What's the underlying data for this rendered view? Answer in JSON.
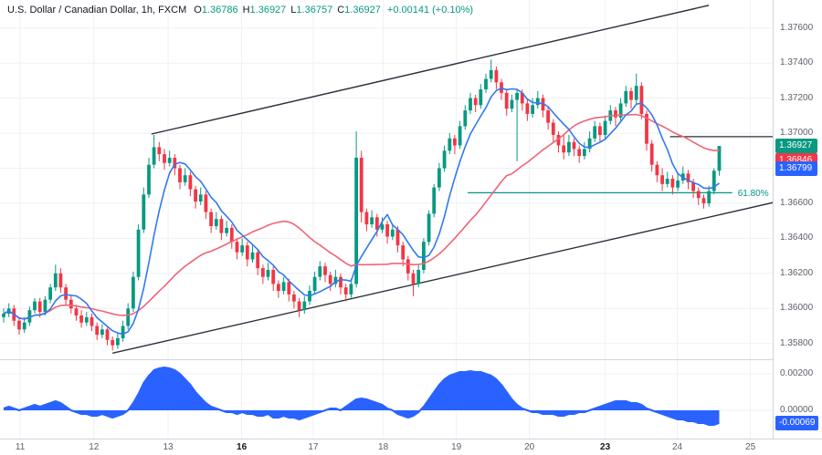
{
  "legend": {
    "title": "U.S. Dollar / Canadian Dollar, 1h, FXCM",
    "ohlc": [
      {
        "k": "O",
        "v": "1.36786"
      },
      {
        "k": "H",
        "v": "1.36927"
      },
      {
        "k": "L",
        "v": "1.36757"
      },
      {
        "k": "C",
        "v": "1.36927"
      }
    ],
    "change": "+0.00141 (+0.10%)"
  },
  "price_scale": {
    "ticks": [
      "1.37600",
      "1.37400",
      "1.37200",
      "1.37000",
      "1.36800",
      "1.36600",
      "1.36400",
      "1.36200",
      "1.36000",
      "1.35800"
    ],
    "badges": [
      {
        "text": "1.36927",
        "value": 1.36927,
        "color": "#089981"
      },
      {
        "text": "1.36846",
        "value": 1.36846,
        "color": "#f23645"
      },
      {
        "text": "1.36799",
        "value": 1.36799,
        "color": "#2962ff"
      }
    ]
  },
  "indicator_scale": {
    "ticks": [
      {
        "text": "0.00200",
        "value": 0.002
      },
      {
        "text": "0.00000",
        "value": 0.0
      }
    ],
    "badge": {
      "text": "-0.00069",
      "value": -0.00069,
      "color": "#2962ff"
    }
  },
  "time_axis": {
    "labels": [
      {
        "text": "11",
        "index": 3.2,
        "bold": false
      },
      {
        "text": "12",
        "index": 17.4,
        "bold": false
      },
      {
        "text": "13",
        "index": 31.7,
        "bold": false
      },
      {
        "text": "16",
        "index": 45.9,
        "bold": true
      },
      {
        "text": "17",
        "index": 59.7,
        "bold": false
      },
      {
        "text": "18",
        "index": 73.2,
        "bold": false
      },
      {
        "text": "19",
        "index": 87.3,
        "bold": false
      },
      {
        "text": "20",
        "index": 101.4,
        "bold": false
      },
      {
        "text": "23",
        "index": 116.0,
        "bold": true
      },
      {
        "text": "24",
        "index": 129.9,
        "bold": false
      },
      {
        "text": "25",
        "index": 144.0,
        "bold": false
      }
    ]
  },
  "chart_data": {
    "type": "candlestick",
    "symbol": "U.S. Dollar / Canadian Dollar",
    "interval": "1h",
    "exchange": "FXCM",
    "price_axis_range": [
      1.3571,
      1.3776
    ],
    "indicator_axis_range": [
      -0.00155,
      0.0028
    ],
    "colors": {
      "up": "#089981",
      "down": "#f23645",
      "grid": "#eef0f5",
      "axis_text": "#5d606b",
      "border": "#d1d4dc"
    },
    "ma_fast": {
      "period": 7,
      "color": "#3179f0"
    },
    "ma_slow": {
      "period": 30,
      "color": "#ef6577"
    },
    "channel": {
      "color": "#2b2f3a",
      "upper": {
        "from": [
          28.5,
          1.36995
        ],
        "to": [
          136.0,
          1.3773
        ]
      },
      "lower": {
        "from": [
          21.0,
          1.35745
        ],
        "to": [
          148.5,
          1.36605
        ]
      }
    },
    "fib_level": {
      "label": "61.80%",
      "price": 1.3666,
      "from_index": 89.5,
      "to_index": 140.5,
      "color": "#009688"
    },
    "level_line": {
      "price": 1.3698,
      "from_index": 128.5,
      "color": "#2b2f3a"
    },
    "candles_ohlc": [
      [
        1.3595,
        1.36,
        1.3592,
        1.3597
      ],
      [
        1.3597,
        1.3603,
        1.3595,
        1.36
      ],
      [
        1.36,
        1.3602,
        1.359,
        1.3593
      ],
      [
        1.3593,
        1.3595,
        1.3585,
        1.3588
      ],
      [
        1.3588,
        1.3595,
        1.3586,
        1.3592
      ],
      [
        1.3592,
        1.3601,
        1.359,
        1.3599
      ],
      [
        1.3599,
        1.3606,
        1.3597,
        1.3604
      ],
      [
        1.3604,
        1.3606,
        1.3595,
        1.3598
      ],
      [
        1.3598,
        1.3607,
        1.3596,
        1.3605
      ],
      [
        1.3605,
        1.3614,
        1.3603,
        1.3612
      ],
      [
        1.3612,
        1.3625,
        1.361,
        1.362
      ],
      [
        1.362,
        1.3623,
        1.3609,
        1.3612
      ],
      [
        1.3612,
        1.3614,
        1.3602,
        1.3605
      ],
      [
        1.3605,
        1.3608,
        1.3597,
        1.36
      ],
      [
        1.36,
        1.3602,
        1.3593,
        1.3596
      ],
      [
        1.3596,
        1.3599,
        1.3589,
        1.3592
      ],
      [
        1.3592,
        1.3598,
        1.359,
        1.3595
      ],
      [
        1.3595,
        1.3597,
        1.3587,
        1.359
      ],
      [
        1.359,
        1.3592,
        1.3582,
        1.3585
      ],
      [
        1.3585,
        1.3591,
        1.3583,
        1.3588
      ],
      [
        1.3588,
        1.3589,
        1.3579,
        1.3582
      ],
      [
        1.3582,
        1.3584,
        1.3576,
        1.3579
      ],
      [
        1.3579,
        1.3586,
        1.3577,
        1.3583
      ],
      [
        1.3583,
        1.3593,
        1.3581,
        1.359
      ],
      [
        1.359,
        1.3603,
        1.3588,
        1.36
      ],
      [
        1.36,
        1.3621,
        1.3598,
        1.3618
      ],
      [
        1.3618,
        1.3648,
        1.3616,
        1.3645
      ],
      [
        1.3645,
        1.3669,
        1.3643,
        1.3665
      ],
      [
        1.3665,
        1.3686,
        1.3663,
        1.3682
      ],
      [
        1.3682,
        1.3699,
        1.368,
        1.3692
      ],
      [
        1.3692,
        1.3695,
        1.3684,
        1.3688
      ],
      [
        1.3688,
        1.3691,
        1.3679,
        1.3683
      ],
      [
        1.3683,
        1.369,
        1.3681,
        1.3686
      ],
      [
        1.3686,
        1.3688,
        1.3676,
        1.368
      ],
      [
        1.368,
        1.3682,
        1.3668,
        1.3672
      ],
      [
        1.3672,
        1.368,
        1.367,
        1.3676
      ],
      [
        1.3676,
        1.3678,
        1.3664,
        1.3668
      ],
      [
        1.3668,
        1.367,
        1.3657,
        1.3661
      ],
      [
        1.3661,
        1.3669,
        1.3659,
        1.3665
      ],
      [
        1.3665,
        1.3667,
        1.3651,
        1.3655
      ],
      [
        1.3655,
        1.3657,
        1.3643,
        1.3647
      ],
      [
        1.3647,
        1.3655,
        1.3645,
        1.3651
      ],
      [
        1.3651,
        1.3653,
        1.3639,
        1.3643
      ],
      [
        1.3643,
        1.365,
        1.3641,
        1.3646
      ],
      [
        1.3646,
        1.3648,
        1.3634,
        1.3638
      ],
      [
        1.3638,
        1.364,
        1.3628,
        1.3632
      ],
      [
        1.3632,
        1.364,
        1.363,
        1.3636
      ],
      [
        1.3636,
        1.3638,
        1.3624,
        1.3628
      ],
      [
        1.3628,
        1.3636,
        1.3626,
        1.3632
      ],
      [
        1.3632,
        1.3634,
        1.3619,
        1.3623
      ],
      [
        1.3623,
        1.3625,
        1.3614,
        1.3618
      ],
      [
        1.3618,
        1.3626,
        1.3616,
        1.3622
      ],
      [
        1.3622,
        1.3624,
        1.361,
        1.3614
      ],
      [
        1.3614,
        1.3616,
        1.3606,
        1.361
      ],
      [
        1.361,
        1.3618,
        1.3608,
        1.3615
      ],
      [
        1.3615,
        1.3617,
        1.3604,
        1.3608
      ],
      [
        1.3608,
        1.361,
        1.36,
        1.3604
      ],
      [
        1.3604,
        1.3606,
        1.3595,
        1.3599
      ],
      [
        1.3599,
        1.3607,
        1.3597,
        1.3604
      ],
      [
        1.3604,
        1.3613,
        1.3602,
        1.361
      ],
      [
        1.361,
        1.3621,
        1.3608,
        1.3618
      ],
      [
        1.3618,
        1.3627,
        1.3616,
        1.3624
      ],
      [
        1.3624,
        1.3626,
        1.3615,
        1.3619
      ],
      [
        1.3619,
        1.3621,
        1.361,
        1.3614
      ],
      [
        1.3614,
        1.3622,
        1.3612,
        1.3618
      ],
      [
        1.3618,
        1.362,
        1.3608,
        1.3612
      ],
      [
        1.3612,
        1.3614,
        1.3604,
        1.3608
      ],
      [
        1.3608,
        1.3617,
        1.3606,
        1.3614
      ],
      [
        1.3614,
        1.3701,
        1.3612,
        1.3686
      ],
      [
        1.3686,
        1.369,
        1.3649,
        1.3655
      ],
      [
        1.3655,
        1.3657,
        1.3644,
        1.3648
      ],
      [
        1.3648,
        1.3656,
        1.3646,
        1.3652
      ],
      [
        1.3652,
        1.3654,
        1.3641,
        1.3645
      ],
      [
        1.3645,
        1.3652,
        1.3643,
        1.3648
      ],
      [
        1.3648,
        1.365,
        1.3637,
        1.3641
      ],
      [
        1.3641,
        1.3648,
        1.3639,
        1.3645
      ],
      [
        1.3645,
        1.3647,
        1.3632,
        1.3636
      ],
      [
        1.3636,
        1.3638,
        1.3624,
        1.3628
      ],
      [
        1.3628,
        1.363,
        1.3616,
        1.362
      ],
      [
        1.362,
        1.3622,
        1.3607,
        1.3614
      ],
      [
        1.3614,
        1.3625,
        1.3612,
        1.3622
      ],
      [
        1.3622,
        1.364,
        1.362,
        1.3638
      ],
      [
        1.3638,
        1.3656,
        1.3636,
        1.3654
      ],
      [
        1.3654,
        1.3671,
        1.3652,
        1.3669
      ],
      [
        1.3669,
        1.3683,
        1.3667,
        1.368
      ],
      [
        1.368,
        1.3693,
        1.3678,
        1.369
      ],
      [
        1.369,
        1.37,
        1.3688,
        1.3697
      ],
      [
        1.3697,
        1.3699,
        1.3688,
        1.3693
      ],
      [
        1.3693,
        1.3707,
        1.3691,
        1.3704
      ],
      [
        1.3704,
        1.3716,
        1.3702,
        1.3713
      ],
      [
        1.3713,
        1.3723,
        1.3711,
        1.372
      ],
      [
        1.372,
        1.3722,
        1.3712,
        1.3716
      ],
      [
        1.3716,
        1.3728,
        1.3714,
        1.3725
      ],
      [
        1.3725,
        1.3734,
        1.3723,
        1.3731
      ],
      [
        1.3731,
        1.3742,
        1.3729,
        1.3736
      ],
      [
        1.3736,
        1.3738,
        1.3725,
        1.3729
      ],
      [
        1.3729,
        1.3731,
        1.3719,
        1.3723
      ],
      [
        1.3723,
        1.3725,
        1.371,
        1.3714
      ],
      [
        1.3714,
        1.3722,
        1.3712,
        1.3719
      ],
      [
        1.3719,
        1.3725,
        1.3684,
        1.3723
      ],
      [
        1.3723,
        1.3725,
        1.3713,
        1.3717
      ],
      [
        1.3717,
        1.3719,
        1.3707,
        1.3711
      ],
      [
        1.3711,
        1.372,
        1.3709,
        1.3716
      ],
      [
        1.3716,
        1.3724,
        1.3714,
        1.372
      ],
      [
        1.372,
        1.3722,
        1.3709,
        1.3713
      ],
      [
        1.3713,
        1.3715,
        1.3702,
        1.3706
      ],
      [
        1.3706,
        1.3708,
        1.3695,
        1.3699
      ],
      [
        1.3699,
        1.3701,
        1.3689,
        1.3693
      ],
      [
        1.3693,
        1.3699,
        1.3685,
        1.3689
      ],
      [
        1.3689,
        1.3699,
        1.3687,
        1.3695
      ],
      [
        1.3695,
        1.3697,
        1.3687,
        1.3691
      ],
      [
        1.3691,
        1.3693,
        1.3683,
        1.3687
      ],
      [
        1.3687,
        1.3695,
        1.3685,
        1.3691
      ],
      [
        1.3691,
        1.3701,
        1.3689,
        1.3697
      ],
      [
        1.3697,
        1.3707,
        1.3695,
        1.3704
      ],
      [
        1.3704,
        1.3706,
        1.3695,
        1.3699
      ],
      [
        1.3699,
        1.371,
        1.3697,
        1.3707
      ],
      [
        1.3707,
        1.3716,
        1.3705,
        1.3713
      ],
      [
        1.3713,
        1.3715,
        1.3704,
        1.3709
      ],
      [
        1.3709,
        1.372,
        1.3707,
        1.3717
      ],
      [
        1.3717,
        1.3727,
        1.3715,
        1.3724
      ],
      [
        1.3724,
        1.3726,
        1.3714,
        1.3719
      ],
      [
        1.3719,
        1.3734,
        1.3717,
        1.3727
      ],
      [
        1.3727,
        1.3729,
        1.3708,
        1.3711
      ],
      [
        1.3711,
        1.3713,
        1.369,
        1.3694
      ],
      [
        1.3694,
        1.3696,
        1.3678,
        1.3682
      ],
      [
        1.3682,
        1.3684,
        1.3672,
        1.3676
      ],
      [
        1.3676,
        1.368,
        1.3667,
        1.3671
      ],
      [
        1.3671,
        1.3678,
        1.3669,
        1.3674
      ],
      [
        1.3674,
        1.3676,
        1.3665,
        1.3669
      ],
      [
        1.3669,
        1.3677,
        1.3667,
        1.3673
      ],
      [
        1.3673,
        1.3681,
        1.3671,
        1.3677
      ],
      [
        1.3677,
        1.3679,
        1.3668,
        1.3672
      ],
      [
        1.3672,
        1.3674,
        1.3663,
        1.3667
      ],
      [
        1.3667,
        1.3669,
        1.3659,
        1.3663
      ],
      [
        1.3663,
        1.3665,
        1.3657,
        1.366
      ],
      [
        1.366,
        1.367,
        1.3658,
        1.3667
      ],
      [
        1.3667,
        1.368,
        1.3665,
        1.36786
      ],
      [
        1.36786,
        1.36927,
        1.36757,
        1.36927
      ]
    ],
    "histogram": {
      "color": "#2962ff",
      "values": [
        0.0001,
        0.0002,
        0.0001,
        0.0,
        0.0001,
        0.0002,
        0.0003,
        0.0002,
        0.0003,
        0.0004,
        0.0005,
        0.0004,
        0.0002,
        0.0,
        -0.0001,
        -0.0002,
        -0.0002,
        -0.0003,
        -0.0003,
        -0.0002,
        -0.0003,
        -0.0004,
        -0.0003,
        -0.0002,
        0.0,
        0.0004,
        0.0009,
        0.0015,
        0.0019,
        0.0022,
        0.0023,
        0.00235,
        0.0023,
        0.0022,
        0.002,
        0.0017,
        0.0014,
        0.001,
        0.0007,
        0.0004,
        0.0002,
        0.0001,
        0.0,
        -0.0001,
        -0.0001,
        -0.0002,
        -0.0001,
        -0.0002,
        -0.0002,
        -0.0003,
        -0.0003,
        -0.0002,
        -0.0004,
        -0.0004,
        -0.0003,
        -0.0004,
        -0.0004,
        -0.0005,
        -0.0004,
        -0.0003,
        -0.0002,
        -0.0001,
        0.0,
        0.0001,
        0.0001,
        0.0,
        0.0002,
        0.0004,
        0.0006,
        0.00065,
        0.0006,
        0.0005,
        0.0004,
        0.0003,
        0.0001,
        0.0,
        -0.0002,
        -0.0003,
        -0.0004,
        -0.0003,
        -0.0001,
        0.0002,
        0.0006,
        0.001,
        0.0014,
        0.0017,
        0.0019,
        0.002,
        0.0021,
        0.0021,
        0.00215,
        0.0021,
        0.0021,
        0.002,
        0.0019,
        0.0017,
        0.0014,
        0.001,
        0.0006,
        0.0003,
        0.0001,
        0.0,
        -0.0001,
        -0.0001,
        -0.0002,
        -0.0002,
        -0.0002,
        -0.0003,
        -0.0003,
        -0.0002,
        -0.0002,
        -0.0001,
        -0.0001,
        0.0,
        0.0001,
        0.0002,
        0.0003,
        0.0004,
        0.0005,
        0.0005,
        0.0005,
        0.0004,
        0.0004,
        0.0003,
        0.0001,
        0.0,
        -0.0001,
        -0.0002,
        -0.0003,
        -0.0004,
        -0.0005,
        -0.0005,
        -0.0006,
        -0.0006,
        -0.0007,
        -0.0007,
        -0.0008,
        -0.0008,
        -0.00069
      ]
    }
  }
}
